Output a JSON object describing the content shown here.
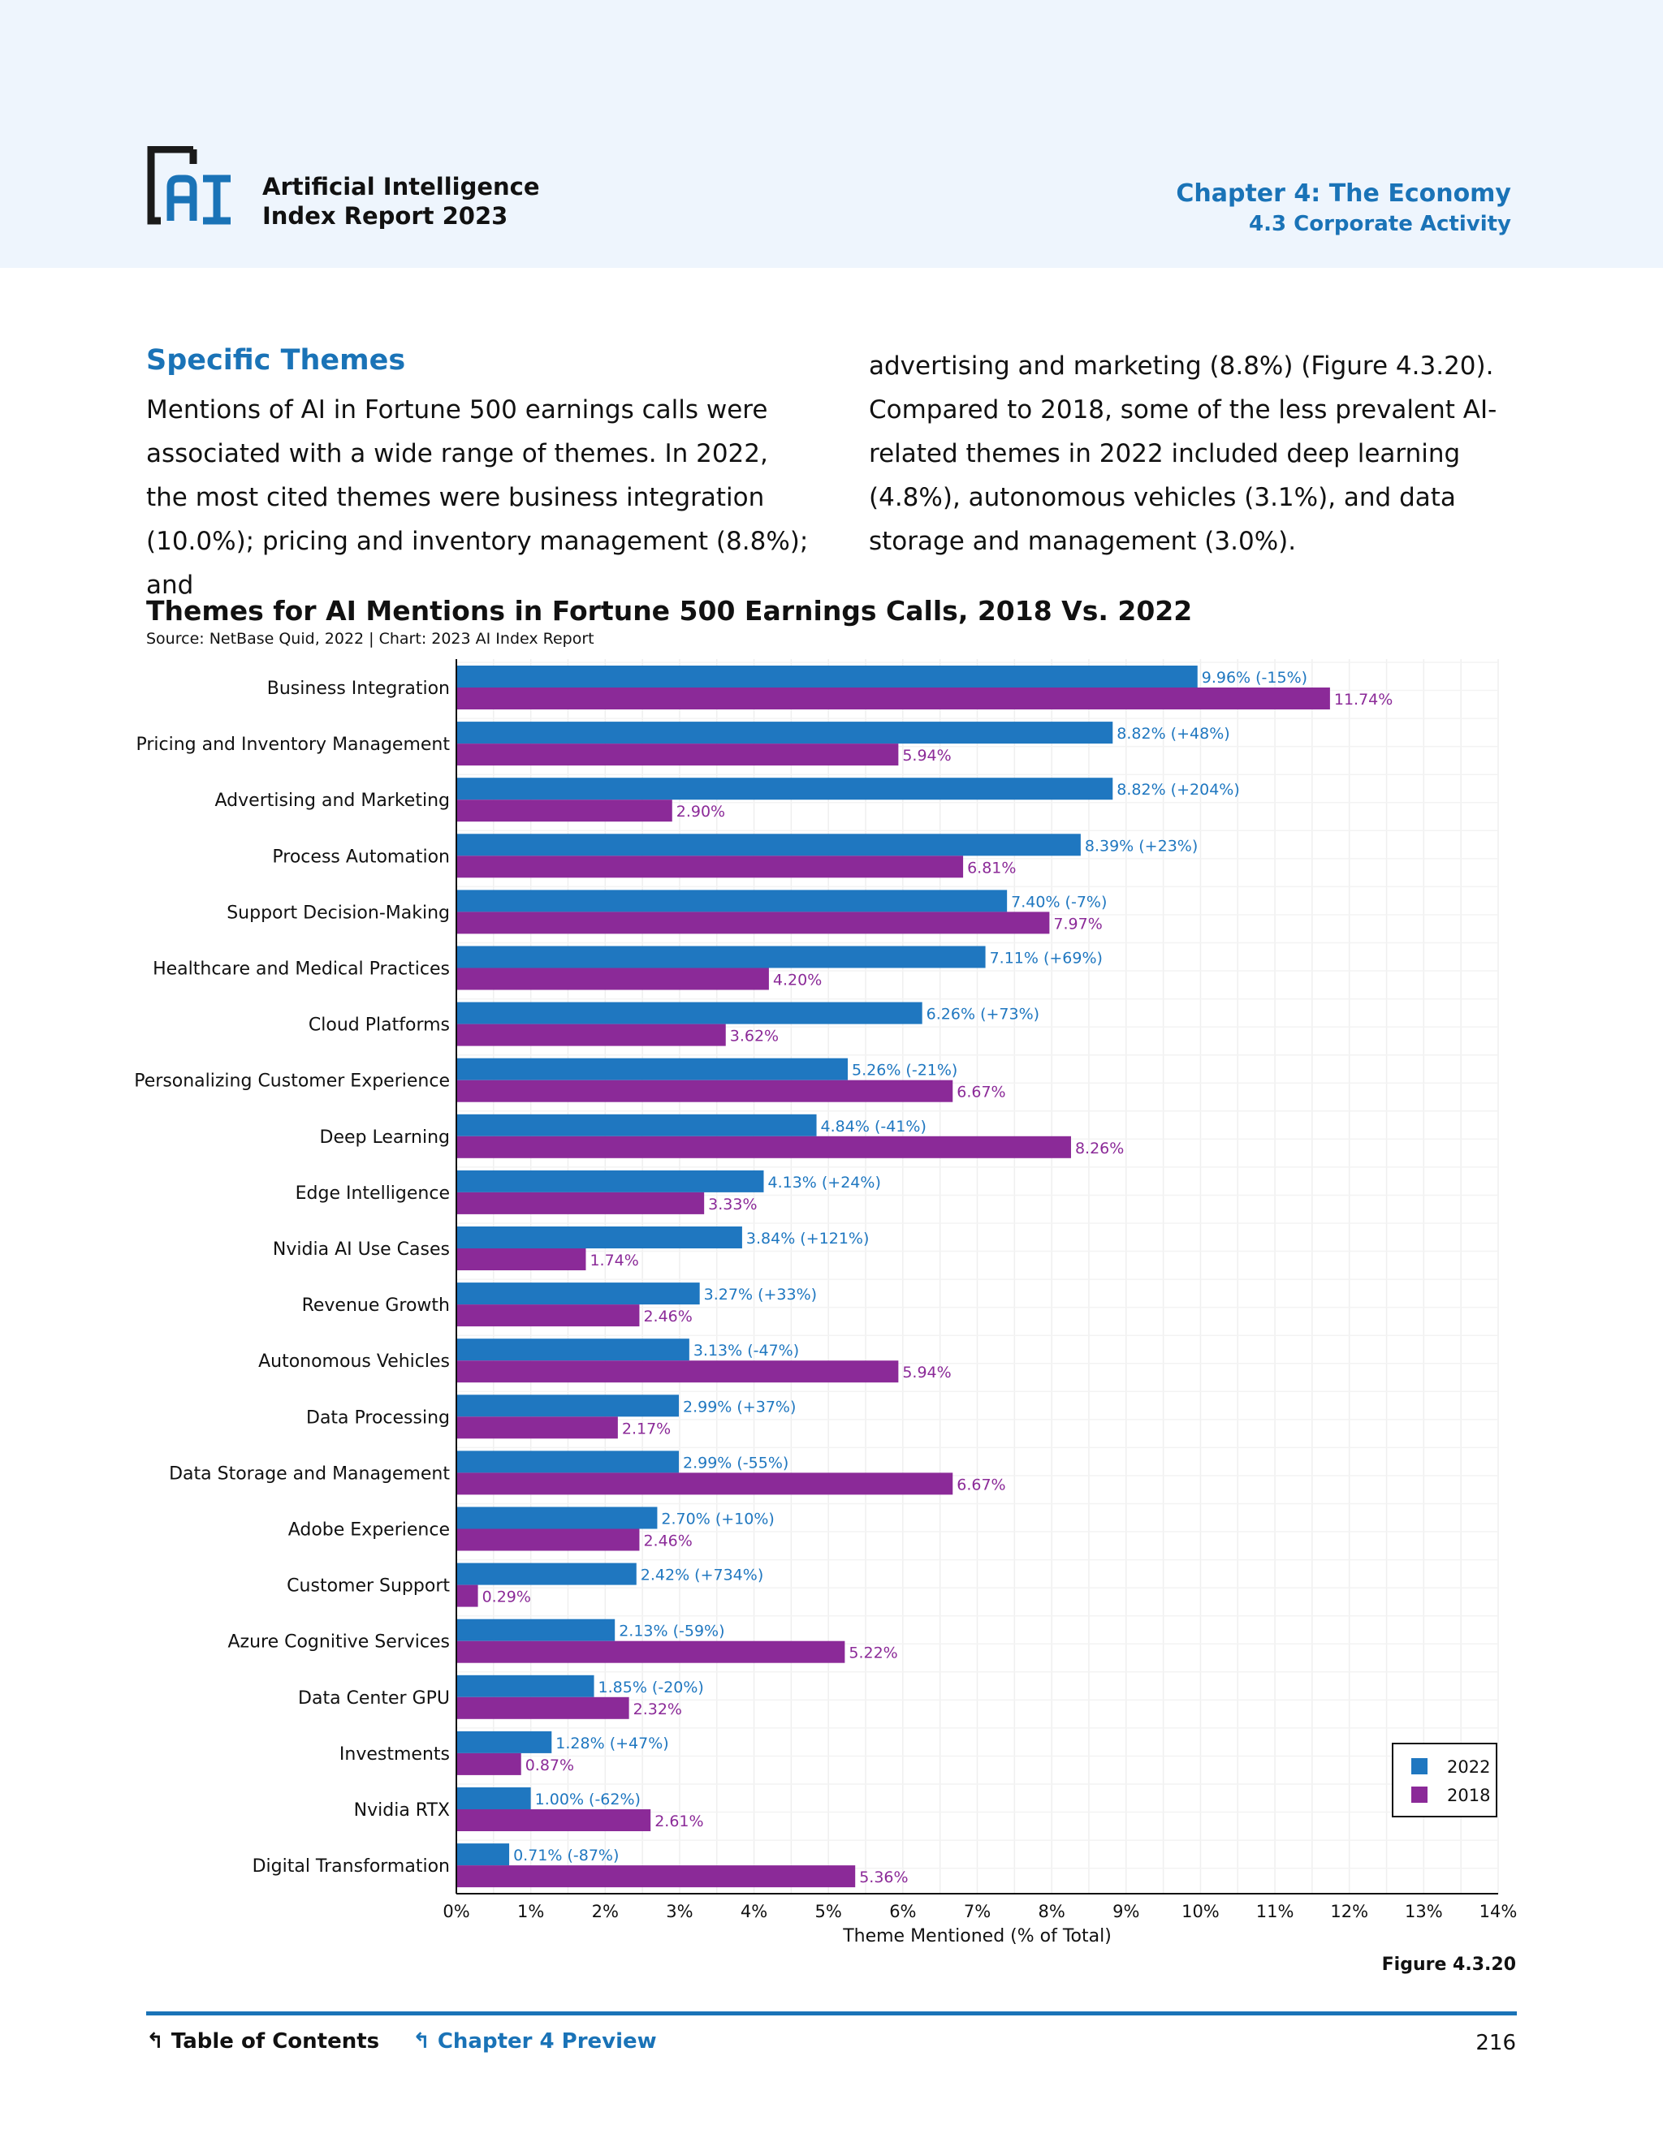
{
  "header": {
    "report_line1": "Artificial Intelligence",
    "report_line2": "Index Report 2023",
    "chapter": "Chapter 4: The Economy",
    "section": "4.3 Corporate Activity",
    "logo_color": "#1a1a1a",
    "logo_accent": "#1a73b7"
  },
  "body": {
    "heading": "Specific Themes",
    "col1": "Mentions of AI in Fortune 500 earnings calls were associated with a wide range of themes. In 2022, the most cited themes were business integration (10.0%); pricing and inventory management (8.8%); and",
    "col2": "advertising and marketing (8.8%) (Figure 4.3.20). Compared to 2018, some of the less prevalent AI-related themes in 2022 included deep learning (4.8%), autonomous vehicles (3.1%), and data storage and management (3.0%)."
  },
  "chart_data": {
    "type": "bar",
    "orientation": "horizontal",
    "title": "Themes for AI Mentions in Fortune 500 Earnings Calls, 2018 Vs. 2022",
    "subtitle": "Source: NetBase Quid, 2022 | Chart: 2023 AI Index Report",
    "xlabel": "Theme Mentioned (% of Total)",
    "xlim": [
      0,
      14
    ],
    "xticks": [
      "0%",
      "1%",
      "2%",
      "3%",
      "4%",
      "5%",
      "6%",
      "7%",
      "8%",
      "9%",
      "10%",
      "11%",
      "12%",
      "13%",
      "14%"
    ],
    "grid": true,
    "legend_position": "bottom-right",
    "categories": [
      "Business Integration",
      "Pricing and Inventory Management",
      "Advertising and Marketing",
      "Process Automation",
      "Support Decision-Making",
      "Healthcare and Medical Practices",
      "Cloud Platforms",
      "Personalizing Customer Experience",
      "Deep Learning",
      "Edge Intelligence",
      "Nvidia AI Use Cases",
      "Revenue Growth",
      "Autonomous Vehicles",
      "Data Processing",
      "Data Storage and Management",
      "Adobe Experience",
      "Customer Support",
      "Azure Cognitive Services",
      "Data Center GPU",
      "Investments",
      "Nvidia RTX",
      "Digital Transformation"
    ],
    "series": [
      {
        "name": "2022",
        "color": "#1f77c0",
        "values": [
          9.96,
          8.82,
          8.82,
          8.39,
          7.4,
          7.11,
          6.26,
          5.26,
          4.84,
          4.13,
          3.84,
          3.27,
          3.13,
          2.99,
          2.99,
          2.7,
          2.42,
          2.13,
          1.85,
          1.28,
          1.0,
          0.71
        ],
        "labels": [
          "9.96% (-15%)",
          "8.82% (+48%)",
          "8.82% (+204%)",
          "8.39% (+23%)",
          "7.40% (-7%)",
          "7.11% (+69%)",
          "6.26% (+73%)",
          "5.26% (-21%)",
          "4.84% (-41%)",
          "4.13% (+24%)",
          "3.84% (+121%)",
          "3.27% (+33%)",
          "3.13% (-47%)",
          "2.99% (+37%)",
          "2.99% (-55%)",
          "2.70% (+10%)",
          "2.42% (+734%)",
          "2.13% (-59%)",
          "1.85% (-20%)",
          "1.28% (+47%)",
          "1.00% (-62%)",
          "0.71% (-87%)"
        ]
      },
      {
        "name": "2018",
        "color": "#8b2a98",
        "values": [
          11.74,
          5.94,
          2.9,
          6.81,
          7.97,
          4.2,
          3.62,
          6.67,
          8.26,
          3.33,
          1.74,
          2.46,
          5.94,
          2.17,
          6.67,
          2.46,
          0.29,
          5.22,
          2.32,
          0.87,
          2.61,
          5.36
        ],
        "labels": [
          "11.74%",
          "5.94%",
          "2.90%",
          "6.81%",
          "7.97%",
          "4.20%",
          "3.62%",
          "6.67%",
          "8.26%",
          "3.33%",
          "1.74%",
          "2.46%",
          "5.94%",
          "2.17%",
          "6.67%",
          "2.46%",
          "0.29%",
          "5.22%",
          "2.32%",
          "0.87%",
          "2.61%",
          "5.36%"
        ]
      }
    ]
  },
  "figure_label": "Figure 4.3.20",
  "footer": {
    "toc": "Table of Contents",
    "preview": "Chapter 4 Preview",
    "page": "216"
  }
}
